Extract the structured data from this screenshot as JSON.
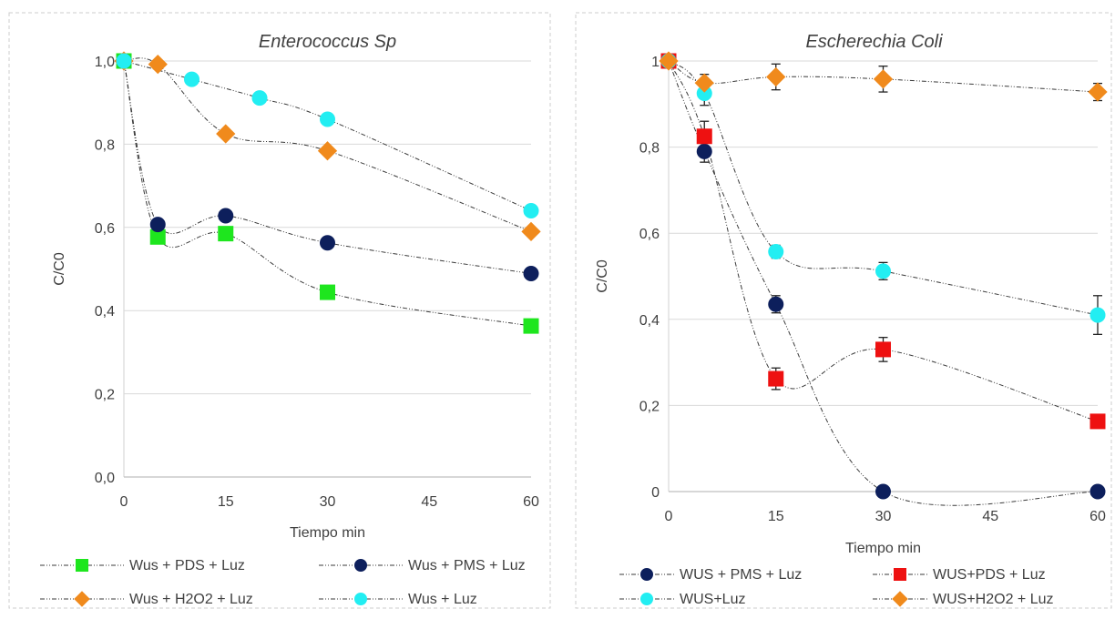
{
  "colors": {
    "green": "#1ee61e",
    "navy": "#0d1f5c",
    "orange": "#f08a1c",
    "cyan": "#22eef2",
    "red": "#ee1111",
    "line": "#3a3a3a",
    "grid": "#d9d9d9",
    "frame": "#cccccc",
    "text": "#404040"
  },
  "chart_data": [
    {
      "type": "scatter",
      "title": "Enterococcus Sp",
      "xlabel": "Tiempo min",
      "ylabel": "C/C0",
      "xlim": [
        0,
        60
      ],
      "ylim": [
        0,
        1
      ],
      "x_ticks": [
        "0",
        "15",
        "30",
        "45",
        "60"
      ],
      "y_ticks": [
        "0,0",
        "0,2",
        "0,4",
        "0,6",
        "0,8",
        "1,0"
      ],
      "grid": "horizontal",
      "smoothed_lines": true,
      "legend_position": "bottom",
      "series": [
        {
          "name": "Wus + PDS + Luz",
          "marker": "square",
          "color": "#1ee61e",
          "x": [
            0,
            5,
            15,
            30,
            60
          ],
          "y": [
            1.0,
            0.577,
            0.585,
            0.444,
            0.363
          ]
        },
        {
          "name": "Wus + PMS + Luz",
          "marker": "circle",
          "color": "#0d1f5c",
          "x": [
            0,
            5,
            15,
            30,
            60
          ],
          "y": [
            1.0,
            0.607,
            0.628,
            0.563,
            0.489
          ]
        },
        {
          "name": "Wus + H2O2 + Luz",
          "marker": "diamond",
          "color": "#f08a1c",
          "x": [
            0,
            5,
            15,
            30,
            60
          ],
          "y": [
            1.0,
            0.992,
            0.825,
            0.784,
            0.59
          ]
        },
        {
          "name": "Wus + Luz",
          "marker": "circle",
          "color": "#22eef2",
          "x": [
            0,
            10,
            20,
            30,
            60
          ],
          "y": [
            1.0,
            0.956,
            0.911,
            0.86,
            0.64
          ]
        }
      ]
    },
    {
      "type": "scatter",
      "title": "Escherechia Coli",
      "xlabel": "Tiempo min",
      "ylabel": "C/C0",
      "xlim": [
        0,
        60
      ],
      "ylim": [
        0,
        1
      ],
      "x_ticks": [
        "0",
        "15",
        "30",
        "45",
        "60"
      ],
      "y_ticks": [
        "0",
        "0,2",
        "0,4",
        "0,6",
        "0,8",
        "1"
      ],
      "grid": "horizontal",
      "smoothed_lines": true,
      "error_bars": true,
      "legend_position": "bottom",
      "series": [
        {
          "name": "WUS + PMS + Luz",
          "marker": "circle",
          "color": "#0d1f5c",
          "x": [
            0,
            5,
            15,
            30,
            60
          ],
          "y": [
            1.0,
            0.79,
            0.435,
            0.0,
            0.0
          ],
          "err": [
            0.0,
            0.025,
            0.02,
            0.0,
            0.0
          ]
        },
        {
          "name": "WUS+PDS + Luz",
          "marker": "square",
          "color": "#ee1111",
          "x": [
            0,
            5,
            15,
            30,
            60
          ],
          "y": [
            1.0,
            0.825,
            0.262,
            0.33,
            0.163
          ],
          "err": [
            0.0,
            0.035,
            0.025,
            0.028,
            0.0
          ]
        },
        {
          "name": "WUS+Luz",
          "marker": "circle",
          "color": "#22eef2",
          "x": [
            0,
            5,
            15,
            30,
            60
          ],
          "y": [
            1.0,
            0.925,
            0.557,
            0.512,
            0.41
          ],
          "err": [
            0.0,
            0.028,
            0.015,
            0.02,
            0.045
          ]
        },
        {
          "name": "WUS+H2O2 + Luz",
          "marker": "diamond",
          "color": "#f08a1c",
          "x": [
            0,
            5,
            15,
            30,
            60
          ],
          "y": [
            1.0,
            0.949,
            0.963,
            0.958,
            0.928
          ],
          "err": [
            0.0,
            0.02,
            0.03,
            0.03,
            0.02
          ]
        }
      ]
    }
  ]
}
